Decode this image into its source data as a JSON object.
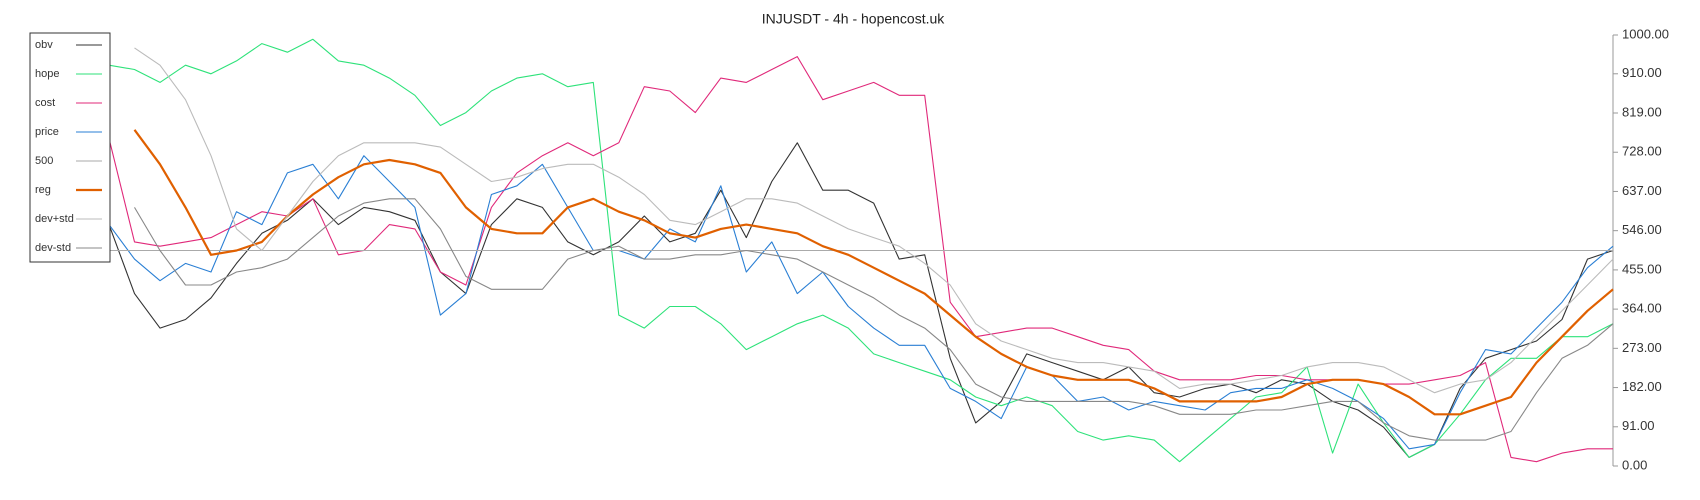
{
  "chart_data": {
    "type": "line",
    "title": "INJUSDT - 4h - hopencost.uk",
    "ylim": [
      0,
      1000
    ],
    "yticks": [
      {
        "value": 0,
        "label": "0.00"
      },
      {
        "value": 91,
        "label": "91.00"
      },
      {
        "value": 182,
        "label": "182.00"
      },
      {
        "value": 273,
        "label": "273.00"
      },
      {
        "value": 364,
        "label": "364.00"
      },
      {
        "value": 455,
        "label": "455.00"
      },
      {
        "value": 546,
        "label": "546.00"
      },
      {
        "value": 637,
        "label": "637.00"
      },
      {
        "value": 728,
        "label": "728.00"
      },
      {
        "value": 819,
        "label": "819.00"
      },
      {
        "value": 910,
        "label": "910.00"
      },
      {
        "value": 1000,
        "label": "1000.00"
      }
    ],
    "legend": "upper left",
    "series": [
      {
        "name": "obv",
        "color": "#333333",
        "values": [
          560,
          400,
          320,
          340,
          390,
          470,
          540,
          570,
          620,
          560,
          600,
          590,
          570,
          450,
          400,
          560,
          620,
          600,
          520,
          490,
          520,
          580,
          520,
          540,
          640,
          530,
          660,
          750,
          640,
          640,
          610,
          480,
          490,
          250,
          100,
          150,
          260,
          240,
          220,
          200,
          230,
          170,
          160,
          180,
          190,
          170,
          200,
          190,
          150,
          130,
          90,
          20,
          50,
          180,
          250,
          270,
          290,
          340,
          480,
          500
        ]
      },
      {
        "name": "hope",
        "color": "#2ee27a",
        "values": [
          930,
          920,
          890,
          930,
          910,
          940,
          980,
          960,
          990,
          940,
          930,
          900,
          860,
          790,
          820,
          870,
          900,
          910,
          880,
          890,
          350,
          320,
          370,
          370,
          330,
          270,
          300,
          330,
          350,
          320,
          260,
          240,
          220,
          200,
          160,
          140,
          160,
          140,
          80,
          60,
          70,
          60,
          10,
          60,
          110,
          160,
          170,
          230,
          30,
          190,
          100,
          20,
          50,
          120,
          200,
          250,
          250,
          300,
          300,
          330
        ]
      },
      {
        "name": "cost",
        "color": "#e0297a",
        "values": [
          760,
          520,
          510,
          520,
          530,
          560,
          590,
          580,
          620,
          490,
          500,
          560,
          550,
          450,
          420,
          600,
          680,
          720,
          750,
          720,
          750,
          880,
          870,
          820,
          900,
          890,
          920,
          950,
          850,
          870,
          890,
          860,
          860,
          380,
          300,
          310,
          320,
          320,
          300,
          280,
          270,
          220,
          200,
          200,
          200,
          210,
          210,
          200,
          200,
          200,
          190,
          190,
          200,
          210,
          240,
          20,
          10,
          30,
          40,
          40
        ]
      },
      {
        "name": "price",
        "color": "#2a7fd4",
        "values": [
          560,
          480,
          430,
          470,
          450,
          590,
          560,
          680,
          700,
          620,
          720,
          660,
          600,
          350,
          400,
          630,
          650,
          700,
          600,
          500,
          500,
          480,
          550,
          520,
          650,
          450,
          520,
          400,
          450,
          370,
          320,
          280,
          280,
          180,
          150,
          110,
          230,
          210,
          150,
          160,
          130,
          150,
          140,
          130,
          170,
          180,
          180,
          200,
          180,
          150,
          110,
          40,
          50,
          170,
          270,
          260,
          320,
          380,
          460,
          510
        ]
      },
      {
        "name": "500",
        "color": "#aaaaaa",
        "values": [
          500,
          500,
          500,
          500,
          500,
          500,
          500,
          500,
          500,
          500,
          500,
          500,
          500,
          500,
          500,
          500,
          500,
          500,
          500,
          500,
          500,
          500,
          500,
          500,
          500,
          500,
          500,
          500,
          500,
          500,
          500,
          500,
          500,
          500,
          500,
          500,
          500,
          500,
          500,
          500,
          500,
          500,
          500,
          500,
          500,
          500,
          500,
          500,
          500,
          500,
          500,
          500,
          500,
          500,
          500,
          500,
          500,
          500,
          500,
          500
        ]
      },
      {
        "name": "reg",
        "color": "#e06000",
        "values": [
          null,
          780,
          700,
          600,
          490,
          500,
          520,
          580,
          630,
          670,
          700,
          710,
          700,
          680,
          600,
          550,
          540,
          540,
          600,
          620,
          590,
          570,
          540,
          530,
          550,
          560,
          550,
          540,
          510,
          490,
          460,
          430,
          400,
          350,
          300,
          260,
          230,
          210,
          200,
          200,
          200,
          180,
          150,
          150,
          150,
          150,
          160,
          190,
          200,
          200,
          190,
          160,
          120,
          120,
          140,
          160,
          240,
          300,
          360,
          410
        ]
      },
      {
        "name": "dev+std",
        "color": "#bbbbbb",
        "values": [
          null,
          970,
          930,
          850,
          720,
          550,
          500,
          580,
          660,
          720,
          750,
          750,
          750,
          740,
          700,
          660,
          670,
          690,
          700,
          700,
          670,
          630,
          570,
          560,
          590,
          620,
          620,
          610,
          580,
          550,
          530,
          510,
          470,
          420,
          330,
          290,
          270,
          250,
          240,
          240,
          230,
          220,
          180,
          190,
          190,
          200,
          210,
          230,
          240,
          240,
          230,
          200,
          170,
          190,
          200,
          240,
          300,
          360,
          420,
          480
        ]
      },
      {
        "name": "dev-std",
        "color": "#888888",
        "values": [
          null,
          600,
          500,
          420,
          420,
          450,
          460,
          480,
          530,
          580,
          610,
          620,
          620,
          550,
          440,
          410,
          410,
          410,
          480,
          500,
          510,
          480,
          480,
          490,
          490,
          500,
          490,
          480,
          450,
          420,
          390,
          350,
          320,
          270,
          190,
          160,
          150,
          150,
          150,
          150,
          150,
          140,
          120,
          120,
          120,
          130,
          130,
          140,
          150,
          150,
          100,
          70,
          60,
          60,
          60,
          80,
          170,
          250,
          280,
          330
        ]
      }
    ]
  }
}
